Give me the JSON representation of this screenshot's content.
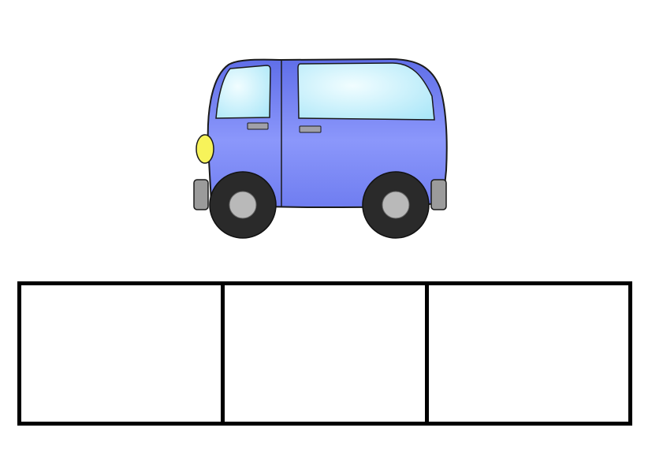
{
  "picture": {
    "icon": "van-icon",
    "colors": {
      "body": "#6f7df0",
      "body_shade": "#9aa6ff",
      "window": "#bfeffb",
      "headlight": "#f7f35a",
      "tire": "#2a2a2a",
      "hub": "#b9b9b9",
      "bumper": "#9b9b9b",
      "outline": "#1a1a1a"
    }
  },
  "answer_boxes": {
    "count": 3,
    "border_color": "#000000",
    "boxes": [
      {
        "value": ""
      },
      {
        "value": ""
      },
      {
        "value": ""
      }
    ]
  }
}
